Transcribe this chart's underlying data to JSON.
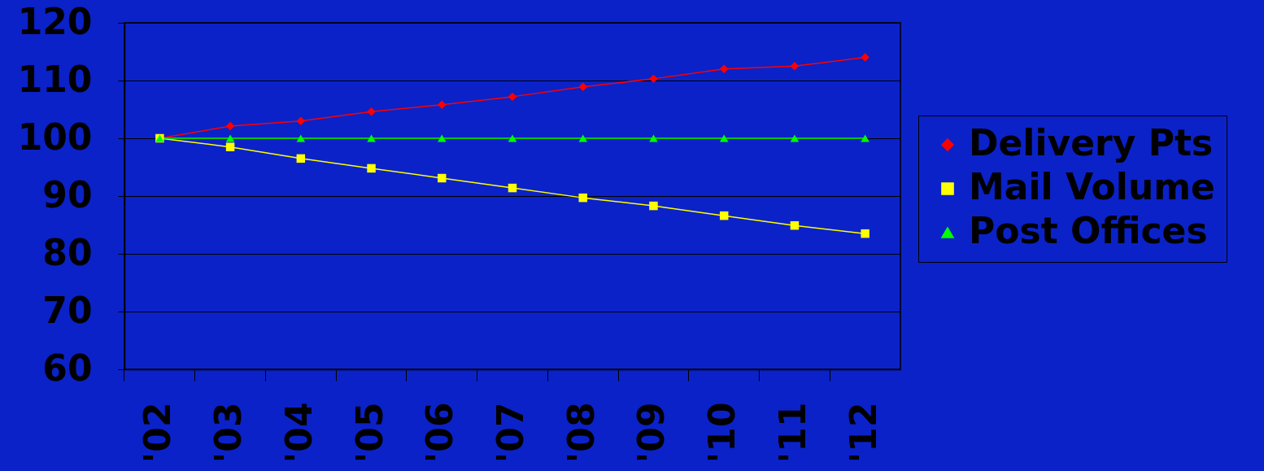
{
  "chart_data": {
    "type": "line",
    "categories": [
      "'02",
      "'03",
      "'04",
      "'05",
      "'06",
      "'07",
      "'08",
      "'09",
      "'10",
      "'11",
      "'12"
    ],
    "series": [
      {
        "name": "Delivery Pts",
        "color": "#ff0000",
        "marker": "diamond",
        "values": [
          100,
          102.1,
          103,
          104.6,
          105.8,
          107.2,
          108.9,
          110.3,
          112,
          112.5,
          114
        ]
      },
      {
        "name": "Mail Volume",
        "color": "#ffff00",
        "marker": "square",
        "values": [
          100,
          98.5,
          96.5,
          94.8,
          93.1,
          91.4,
          89.7,
          88.3,
          86.6,
          84.9,
          83.5
        ]
      },
      {
        "name": "Post Offices",
        "color": "#00ff00",
        "marker": "triangle",
        "values": [
          100,
          100,
          100,
          100,
          100,
          100,
          100,
          100,
          100,
          100,
          100
        ]
      }
    ],
    "ylim": [
      60,
      120
    ],
    "yticks": [
      60,
      70,
      80,
      90,
      100,
      110,
      120
    ],
    "grid": "y",
    "legend": "right"
  }
}
